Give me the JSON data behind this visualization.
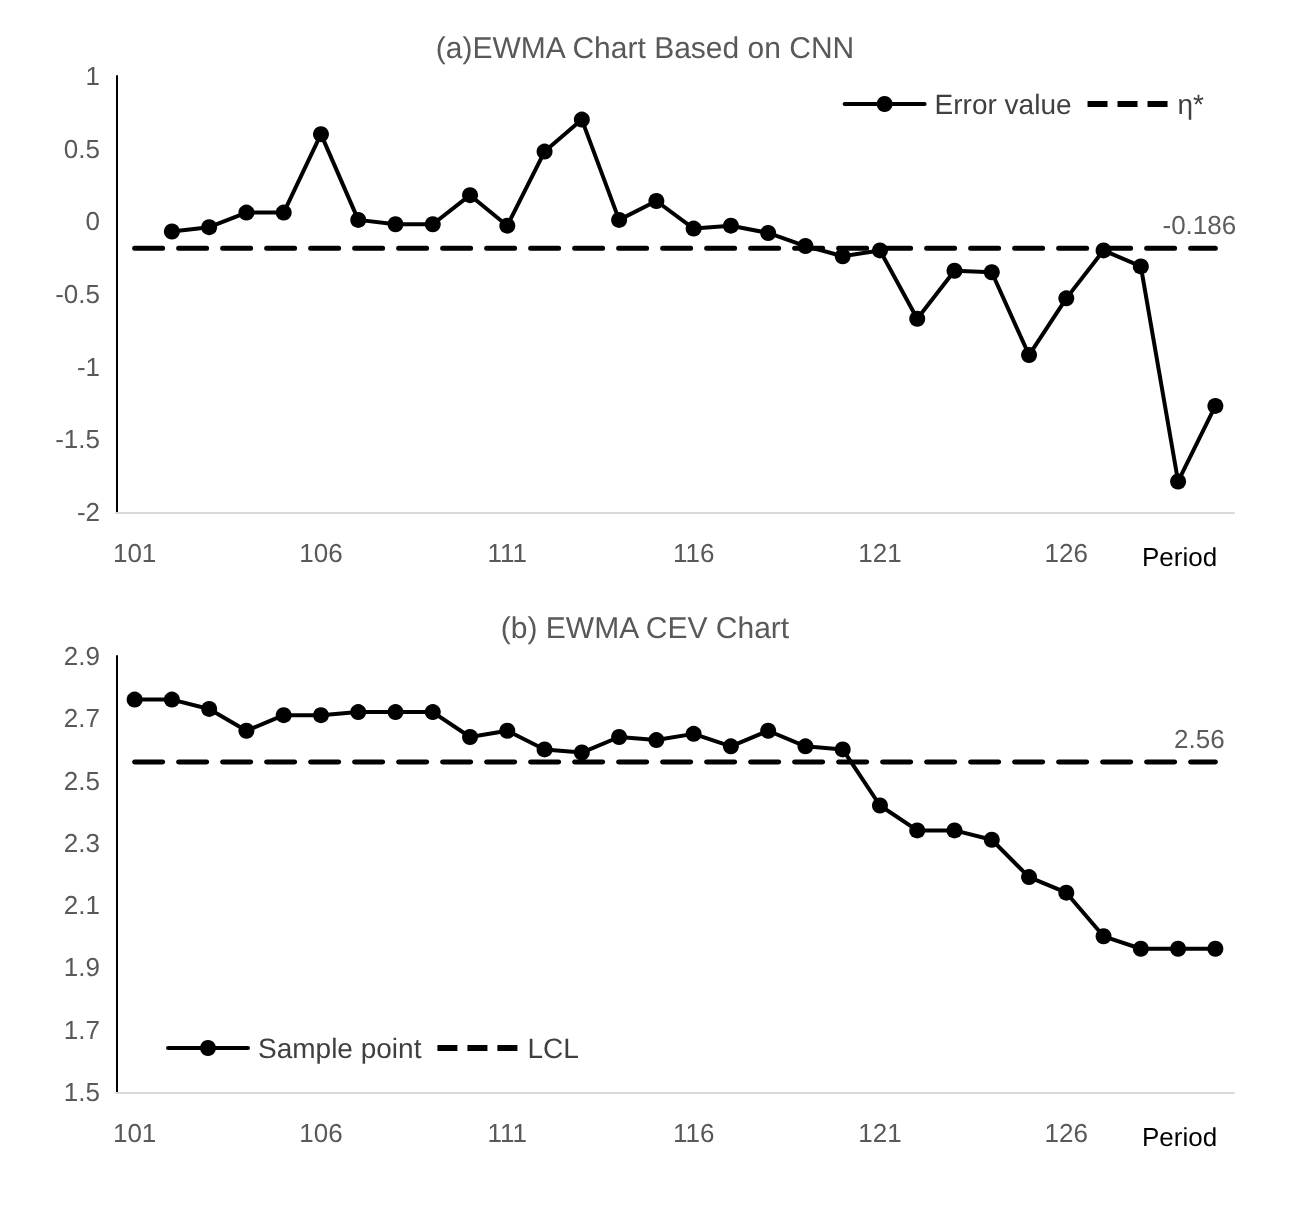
{
  "chart_data": [
    {
      "type": "line",
      "title": "(a)EWMA Chart Based on CNN",
      "xlabel": "Period",
      "xlim": [
        100.5,
        130.5
      ],
      "xticks": [
        101,
        106,
        111,
        116,
        121,
        126
      ],
      "ylim": [
        -2,
        1
      ],
      "yticks": [
        -2,
        -1.5,
        -1,
        -0.5,
        0,
        0.5,
        1
      ],
      "grid": false,
      "legend": "top right",
      "series": [
        {
          "name": "Error value",
          "color": "#000000",
          "marker": "circle",
          "line_style": "solid",
          "x": [
            102,
            103,
            104,
            105,
            106,
            107,
            108,
            109,
            110,
            111,
            112,
            113,
            114,
            115,
            116,
            117,
            118,
            119,
            120,
            121,
            122,
            123,
            124,
            125,
            126,
            127,
            128,
            129,
            130
          ],
          "values": [
            -0.07,
            -0.04,
            0.06,
            0.06,
            0.6,
            0.01,
            -0.02,
            -0.02,
            0.18,
            -0.03,
            0.48,
            0.7,
            0.01,
            0.14,
            -0.05,
            -0.03,
            -0.08,
            -0.17,
            -0.24,
            -0.2,
            -0.67,
            -0.34,
            -0.35,
            -0.92,
            -0.53,
            -0.2,
            -0.31,
            -1.79,
            -1.27
          ]
        },
        {
          "name": "η*",
          "color": "#000000",
          "marker": "none",
          "line_style": "dashed",
          "x": [
            101,
            130
          ],
          "values": [
            -0.186,
            -0.186
          ]
        }
      ],
      "annotations": [
        {
          "text": "-0.186",
          "x": 130,
          "y": -0.186
        }
      ]
    },
    {
      "type": "line",
      "title": "(b) EWMA CEV Chart",
      "xlabel": "Period",
      "xlim": [
        100.5,
        130.5
      ],
      "xticks": [
        101,
        106,
        111,
        116,
        121,
        126
      ],
      "ylim": [
        1.5,
        2.9
      ],
      "yticks": [
        1.5,
        1.7,
        1.9,
        2.1,
        2.3,
        2.5,
        2.7,
        2.9
      ],
      "grid": false,
      "legend": "bottom left",
      "series": [
        {
          "name": "Sample point",
          "color": "#000000",
          "marker": "circle",
          "line_style": "solid",
          "x": [
            101,
            102,
            103,
            104,
            105,
            106,
            107,
            108,
            109,
            110,
            111,
            112,
            113,
            114,
            115,
            116,
            117,
            118,
            119,
            120,
            121,
            122,
            123,
            124,
            125,
            126,
            127,
            128,
            129,
            130
          ],
          "values": [
            2.76,
            2.76,
            2.73,
            2.66,
            2.71,
            2.71,
            2.72,
            2.72,
            2.72,
            2.64,
            2.66,
            2.6,
            2.59,
            2.64,
            2.63,
            2.65,
            2.61,
            2.66,
            2.61,
            2.6,
            2.42,
            2.34,
            2.34,
            2.31,
            2.19,
            2.14,
            2.0,
            1.96,
            1.96,
            1.96
          ]
        },
        {
          "name": "LCL",
          "color": "#000000",
          "marker": "none",
          "line_style": "dashed",
          "x": [
            101,
            130
          ],
          "values": [
            2.56,
            2.56
          ]
        }
      ],
      "annotations": [
        {
          "text": "2.56",
          "x": 130,
          "y": 2.56
        }
      ]
    }
  ]
}
